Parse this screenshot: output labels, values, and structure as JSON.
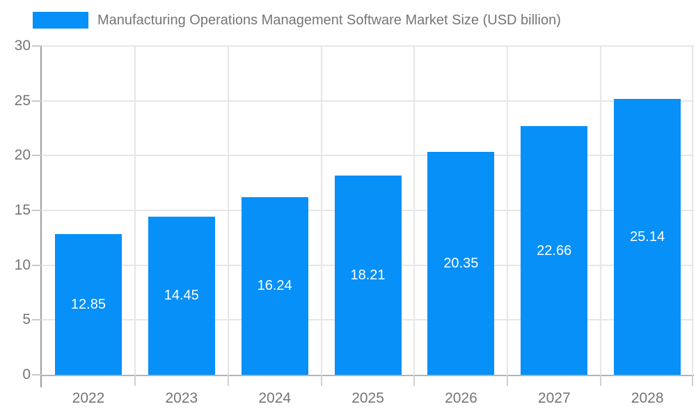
{
  "legend": {
    "series_label": "Manufacturing Operations Management Software Market Size (USD billion)"
  },
  "chart_data": {
    "type": "bar",
    "title": "Manufacturing Operations Management Software Market Size (USD billion)",
    "categories": [
      "2022",
      "2023",
      "2024",
      "2025",
      "2026",
      "2027",
      "2028"
    ],
    "values": [
      12.85,
      14.45,
      16.24,
      18.21,
      20.35,
      22.66,
      25.14
    ],
    "data_labels": [
      "12.85",
      "14.45",
      "16.24",
      "18.21",
      "20.35",
      "22.66",
      "25.14"
    ],
    "xlabel": "",
    "ylabel": "",
    "ylim": [
      0,
      30
    ],
    "yticks": [
      0,
      5,
      10,
      15,
      20,
      25,
      30
    ],
    "grid": true,
    "legend_position": "top-left",
    "colors": {
      "bar": "#0690f8",
      "bar_label_text": "#ffffff",
      "axis_text": "#757575",
      "gridline": "#e6e6e6",
      "axis_line": "#b3b3b3",
      "y_axis_line": "#9e9e9e"
    }
  }
}
